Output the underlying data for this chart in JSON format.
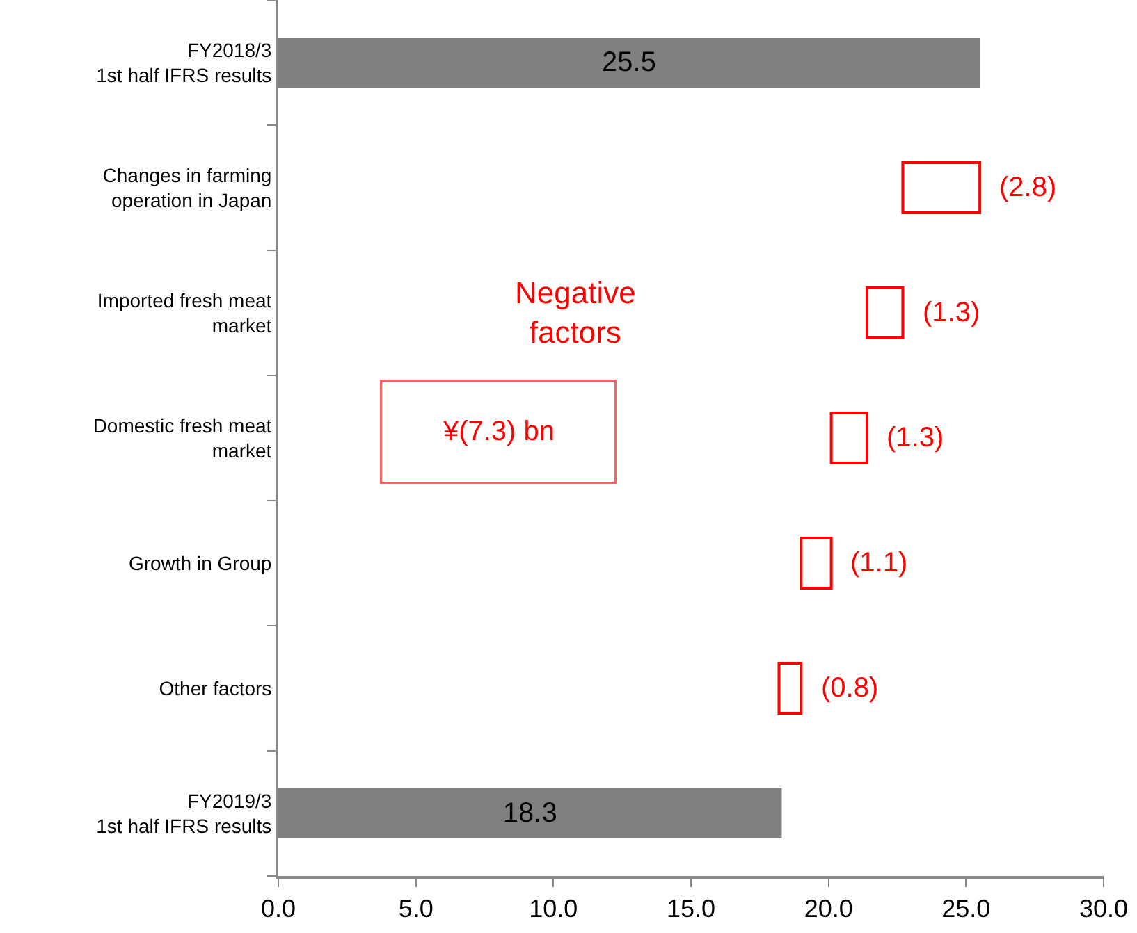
{
  "chart_data": {
    "type": "bar",
    "orientation": "horizontal",
    "categories": [
      "FY2018/3\n1st half IFRS results",
      "Changes in farming\noperation in Japan",
      "Imported fresh meat\nmarket",
      "Domestic fresh meat\nmarket",
      "Growth in Group",
      "Other factors",
      "FY2019/3\n1st half IFRS results"
    ],
    "series": [
      {
        "color": "#808080",
        "values": [
          25.5,
          null,
          null,
          null,
          null,
          null,
          18.3
        ],
        "base": [
          0,
          null,
          null,
          null,
          null,
          null,
          0
        ],
        "value_labels": [
          "25.5",
          null,
          null,
          null,
          null,
          null,
          "18.3"
        ]
      },
      {
        "color": "#ff0000",
        "values": [
          null,
          -2.8,
          -1.3,
          -1.3,
          -1.1,
          -0.8,
          null
        ],
        "base": [
          null,
          25.5,
          22.7,
          21.4,
          20.1,
          19.0,
          null
        ],
        "value_labels": [
          null,
          "(2.8)",
          "(1.3)",
          "(1.3)",
          "(1.1)",
          "(0.8)",
          null
        ]
      }
    ],
    "xlim": [
      0,
      30
    ],
    "xticks": [
      {
        "value": 0,
        "label": "0.0"
      },
      {
        "value": 5,
        "label": "5.0"
      },
      {
        "value": 10,
        "label": "10.0"
      },
      {
        "value": 15,
        "label": "15.0"
      },
      {
        "value": 20,
        "label": "20.0"
      },
      {
        "value": 25,
        "label": "25.0"
      },
      {
        "value": 30,
        "label": "30.0"
      }
    ],
    "annotations": [
      "Negative factors",
      "¥(7.3) bn"
    ]
  }
}
